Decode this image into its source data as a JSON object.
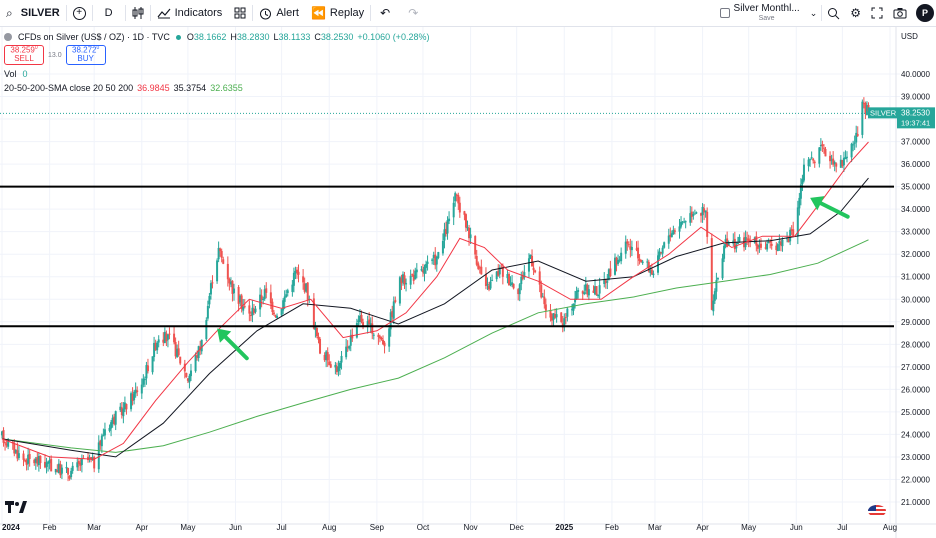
{
  "toolbar": {
    "symbol": "SILVER",
    "add_symbol": "+",
    "interval": "D",
    "indicators_label": "Indicators",
    "alert_label": "Alert",
    "replay_label": "Replay",
    "layout_name": "Silver Monthl...",
    "layout_status": "Save",
    "avatar_initial": "P"
  },
  "legend": {
    "instrument": "CFDs on Silver (US$ / OZ) · 1D · TVC",
    "ohlc": {
      "o_label": "O",
      "o": "38.1662",
      "h_label": "H",
      "h": "38.2830",
      "l_label": "L",
      "l": "38.1133",
      "c_label": "C",
      "c": "38.2530",
      "change": "+0.1060 (+0.28%)"
    },
    "sell_price": "38.259",
    "sell_sup": "0",
    "sell_label": "SELL",
    "spread": "13.0",
    "buy_price": "38.272",
    "buy_sup": "0",
    "buy_label": "BUY",
    "vol_label": "Vol",
    "vol_value": "0",
    "sma_label": "20-50-200-SMA close 20 50 200",
    "sma20": "36.9845",
    "sma50": "35.3754",
    "sma200": "32.6355"
  },
  "price_axis": {
    "currency": "USD",
    "ticks": [
      "40.0000",
      "39.0000",
      "37.0000",
      "36.0000",
      "35.0000",
      "34.0000",
      "33.0000",
      "32.0000",
      "31.0000",
      "30.0000",
      "29.0000",
      "28.0000",
      "27.0000",
      "26.0000",
      "25.0000",
      "24.0000",
      "23.0000",
      "22.0000",
      "21.0000"
    ],
    "symbol_tag": "SILVER",
    "last_price": "38.2530",
    "countdown": "19:37:41"
  },
  "time_axis": {
    "labels": [
      "2024",
      "Feb",
      "Mar",
      "Apr",
      "May",
      "Jun",
      "Jul",
      "Aug",
      "Sep",
      "Oct",
      "Nov",
      "Dec",
      "2025",
      "Feb",
      "Mar",
      "Apr",
      "May",
      "Jun",
      "Jul",
      "Aug"
    ]
  },
  "colors": {
    "up": "#26a69a",
    "down": "#ef5350",
    "sma20": "#f23645",
    "sma50": "#131722",
    "sma200": "#4caf50",
    "arrow": "#22c55e",
    "hline": "#000000",
    "price_tag": "#26a69a"
  },
  "chart_data": {
    "type": "candlestick",
    "ylim": [
      20.5,
      40.6
    ],
    "horizontal_levels": [
      35.0,
      28.8
    ],
    "annotations": [
      {
        "type": "arrow",
        "x": "2024-05-20",
        "y": 28.7,
        "color": "green"
      },
      {
        "type": "arrow",
        "x": "2025-06-10",
        "y": 34.5,
        "color": "green"
      }
    ],
    "anchors": [
      [
        "2024-01-01",
        23.9
      ],
      [
        "2024-01-15",
        22.9
      ],
      [
        "2024-01-25",
        22.8
      ],
      [
        "2024-02-05",
        22.5
      ],
      [
        "2024-02-14",
        22.3
      ],
      [
        "2024-02-25",
        22.9
      ],
      [
        "2024-03-01",
        22.7
      ],
      [
        "2024-03-08",
        24.3
      ],
      [
        "2024-03-20",
        25.1
      ],
      [
        "2024-04-01",
        26.3
      ],
      [
        "2024-04-12",
        28.4
      ],
      [
        "2024-04-20",
        28.2
      ],
      [
        "2024-05-01",
        26.5
      ],
      [
        "2024-05-10",
        28.1
      ],
      [
        "2024-05-17",
        31.0
      ],
      [
        "2024-05-21",
        32.2
      ],
      [
        "2024-05-31",
        30.3
      ],
      [
        "2024-06-10",
        29.3
      ],
      [
        "2024-06-20",
        30.3
      ],
      [
        "2024-06-28",
        29.3
      ],
      [
        "2024-07-10",
        31.2
      ],
      [
        "2024-07-17",
        30.5
      ],
      [
        "2024-07-26",
        27.7
      ],
      [
        "2024-08-07",
        26.9
      ],
      [
        "2024-08-20",
        29.2
      ],
      [
        "2024-09-06",
        28.1
      ],
      [
        "2024-09-16",
        30.8
      ],
      [
        "2024-09-30",
        31.2
      ],
      [
        "2024-10-11",
        31.9
      ],
      [
        "2024-10-22",
        34.5
      ],
      [
        "2024-10-30",
        33.2
      ],
      [
        "2024-11-11",
        30.4
      ],
      [
        "2024-11-20",
        31.3
      ],
      [
        "2024-12-02",
        30.5
      ],
      [
        "2024-12-10",
        32.0
      ],
      [
        "2024-12-20",
        29.4
      ],
      [
        "2024-12-31",
        28.9
      ],
      [
        "2025-01-10",
        30.4
      ],
      [
        "2025-01-24",
        30.4
      ],
      [
        "2025-01-31",
        31.3
      ],
      [
        "2025-02-11",
        32.4
      ],
      [
        "2025-02-28",
        31.2
      ],
      [
        "2025-03-10",
        32.9
      ],
      [
        "2025-03-27",
        34.0
      ],
      [
        "2025-04-03",
        33.8
      ],
      [
        "2025-04-07",
        29.5
      ],
      [
        "2025-04-15",
        32.4
      ],
      [
        "2025-04-30",
        32.6
      ],
      [
        "2025-05-15",
        32.3
      ],
      [
        "2025-05-30",
        32.9
      ],
      [
        "2025-06-06",
        35.8
      ],
      [
        "2025-06-17",
        36.6
      ],
      [
        "2025-06-30",
        36.0
      ],
      [
        "2025-07-11",
        37.3
      ],
      [
        "2025-07-14",
        38.5
      ],
      [
        "2025-07-18",
        38.3
      ]
    ],
    "sma20": [
      [
        "2024-01-01",
        23.8
      ],
      [
        "2024-02-01",
        23.0
      ],
      [
        "2024-03-01",
        22.9
      ],
      [
        "2024-03-20",
        23.6
      ],
      [
        "2024-04-10",
        25.5
      ],
      [
        "2024-05-01",
        27.2
      ],
      [
        "2024-05-20",
        28.6
      ],
      [
        "2024-06-10",
        30.0
      ],
      [
        "2024-07-01",
        29.6
      ],
      [
        "2024-07-20",
        30.0
      ],
      [
        "2024-08-10",
        28.3
      ],
      [
        "2024-09-01",
        28.6
      ],
      [
        "2024-09-20",
        29.4
      ],
      [
        "2024-10-10",
        31.0
      ],
      [
        "2024-10-25",
        32.7
      ],
      [
        "2024-11-10",
        32.3
      ],
      [
        "2024-11-25",
        31.3
      ],
      [
        "2024-12-15",
        30.8
      ],
      [
        "2025-01-05",
        30.0
      ],
      [
        "2025-01-25",
        30.0
      ],
      [
        "2025-02-15",
        31.0
      ],
      [
        "2025-03-10",
        32.0
      ],
      [
        "2025-03-31",
        33.2
      ],
      [
        "2025-04-20",
        32.3
      ],
      [
        "2025-05-10",
        32.8
      ],
      [
        "2025-05-31",
        32.8
      ],
      [
        "2025-06-20",
        34.6
      ],
      [
        "2025-07-05",
        36.0
      ],
      [
        "2025-07-18",
        36.98
      ]
    ],
    "sma50": [
      [
        "2024-01-01",
        23.8
      ],
      [
        "2024-02-15",
        23.3
      ],
      [
        "2024-03-15",
        23.0
      ],
      [
        "2024-04-15",
        24.5
      ],
      [
        "2024-05-15",
        26.7
      ],
      [
        "2024-06-15",
        28.6
      ],
      [
        "2024-07-15",
        29.8
      ],
      [
        "2024-08-15",
        29.6
      ],
      [
        "2024-09-15",
        28.9
      ],
      [
        "2024-10-15",
        29.8
      ],
      [
        "2024-11-15",
        31.3
      ],
      [
        "2024-12-15",
        31.7
      ],
      [
        "2025-01-15",
        30.8
      ],
      [
        "2025-02-15",
        31.0
      ],
      [
        "2025-03-15",
        31.9
      ],
      [
        "2025-04-15",
        32.5
      ],
      [
        "2025-05-15",
        32.6
      ],
      [
        "2025-06-10",
        32.9
      ],
      [
        "2025-06-30",
        33.9
      ],
      [
        "2025-07-18",
        35.38
      ]
    ],
    "sma200": [
      [
        "2024-01-01",
        23.8
      ],
      [
        "2024-02-15",
        23.4
      ],
      [
        "2024-03-15",
        23.2
      ],
      [
        "2024-04-15",
        23.5
      ],
      [
        "2024-05-15",
        24.1
      ],
      [
        "2024-06-15",
        24.8
      ],
      [
        "2024-07-15",
        25.4
      ],
      [
        "2024-08-15",
        26.0
      ],
      [
        "2024-09-15",
        26.5
      ],
      [
        "2024-10-15",
        27.4
      ],
      [
        "2024-11-15",
        28.5
      ],
      [
        "2024-12-15",
        29.4
      ],
      [
        "2025-01-15",
        29.8
      ],
      [
        "2025-02-15",
        30.1
      ],
      [
        "2025-03-15",
        30.5
      ],
      [
        "2025-04-15",
        30.8
      ],
      [
        "2025-05-15",
        31.1
      ],
      [
        "2025-06-15",
        31.6
      ],
      [
        "2025-07-18",
        32.64
      ]
    ]
  }
}
